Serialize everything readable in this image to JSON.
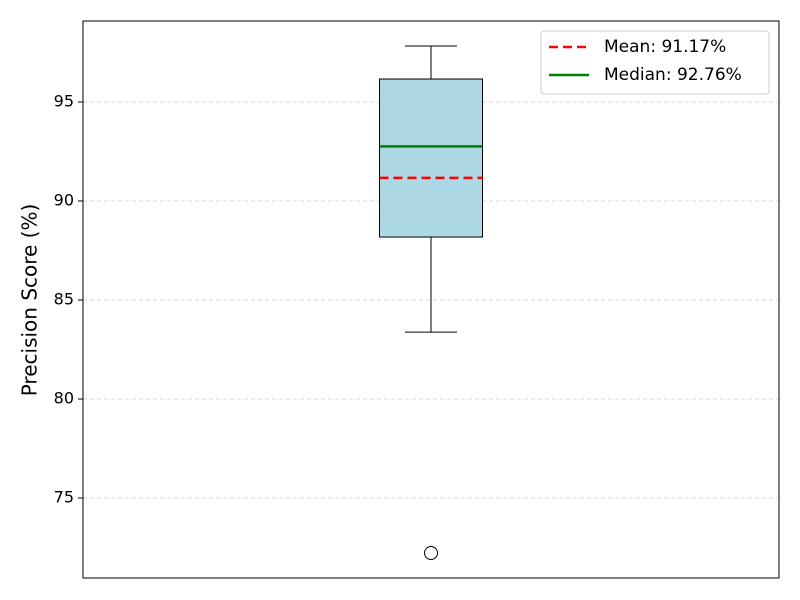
{
  "chart_data": {
    "type": "box",
    "ylabel": "Precision Score (%)",
    "ylim": [
      70.96,
      99.09
    ],
    "yticks": [
      75,
      80,
      85,
      90,
      95
    ],
    "grid": true,
    "box": {
      "whislo": 83.38,
      "q1": 88.18,
      "median": 92.76,
      "mean": 91.17,
      "q3": 96.16,
      "whishi": 97.83,
      "fliers": [
        72.22
      ],
      "color": "#add8e6"
    },
    "median_color": "green",
    "mean_color": "red",
    "legend": {
      "loc": "upper right",
      "entries": [
        {
          "label": "Mean: 91.17%",
          "color": "red",
          "linestyle": "dashed"
        },
        {
          "label": "Median: 92.76%",
          "color": "green",
          "linestyle": "solid"
        }
      ]
    }
  }
}
